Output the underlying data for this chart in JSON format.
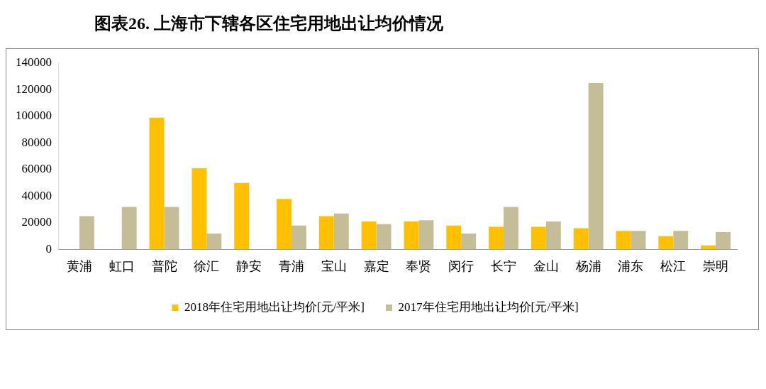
{
  "chart_data": {
    "type": "bar",
    "title": "图表26. 上海市下辖各区住宅用地出让均价情况",
    "categories": [
      "黄浦",
      "虹口",
      "普陀",
      "徐汇",
      "静安",
      "青浦",
      "宝山",
      "嘉定",
      "奉贤",
      "闵行",
      "长宁",
      "金山",
      "杨浦",
      "浦东",
      "松江",
      "崇明"
    ],
    "series": [
      {
        "name": "2018年住宅用地出让均价[元/平米]",
        "color": "#ffc000",
        "values": [
          null,
          null,
          99000,
          61000,
          50000,
          38000,
          25000,
          21000,
          21000,
          18000,
          17000,
          17000,
          16000,
          14000,
          10000,
          3000
        ]
      },
      {
        "name": "2017年住宅用地出让均价[元/平米]",
        "color": "#c4bd97",
        "values": [
          25000,
          32000,
          32000,
          12000,
          null,
          18000,
          27000,
          19000,
          22000,
          12000,
          32000,
          21000,
          125000,
          14000,
          14000,
          13000
        ]
      }
    ],
    "ylim": [
      0,
      140000
    ],
    "yticks": [
      0,
      20000,
      40000,
      60000,
      80000,
      100000,
      120000,
      140000
    ],
    "grid": false,
    "legend": "bottom"
  }
}
